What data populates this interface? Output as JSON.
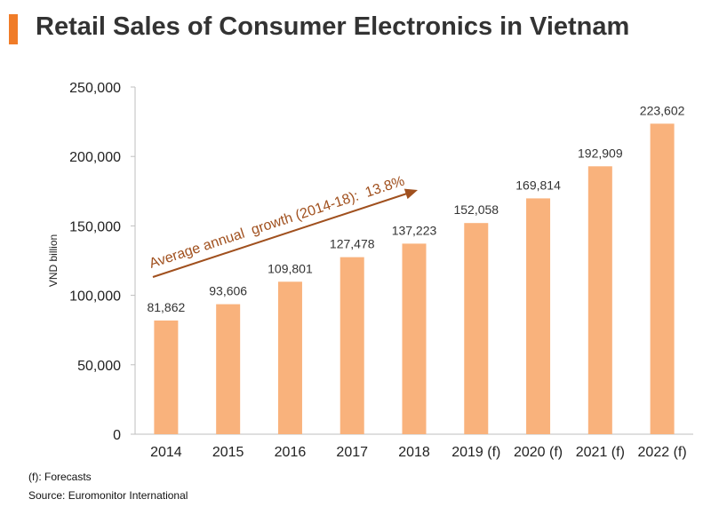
{
  "header": {
    "title": "Retail Sales of Consumer Electronics in Vietnam",
    "accent_color": "#f07c28"
  },
  "chart_data": {
    "type": "bar",
    "title": "Retail Sales of Consumer Electronics in Vietnam",
    "xlabel": "",
    "ylabel": "VND billion",
    "ylim": [
      0,
      250000
    ],
    "yticks": [
      "0",
      "50,000",
      "100,000",
      "150,000",
      "200,000",
      "250,000"
    ],
    "categories": [
      "2014",
      "2015",
      "2016",
      "2017",
      "2018",
      "2019 (f)",
      "2020 (f)",
      "2021 (f)",
      "2022 (f)"
    ],
    "values": [
      81862,
      93606,
      109801,
      127478,
      137223,
      152058,
      169814,
      192909,
      223602
    ],
    "value_labels": [
      "81,862",
      "93,606",
      "109,801",
      "127,478",
      "137,223",
      "152,058",
      "169,814",
      "192,909",
      "223,602"
    ],
    "bar_color": "#f9b27c",
    "grid": false,
    "annotation": {
      "text": "Average annual  growth (2014-18):  13.8%",
      "color": "#a0501e"
    }
  },
  "footnotes": {
    "forecast": "(f): Forecasts",
    "source": "Source: Euromonitor International"
  }
}
